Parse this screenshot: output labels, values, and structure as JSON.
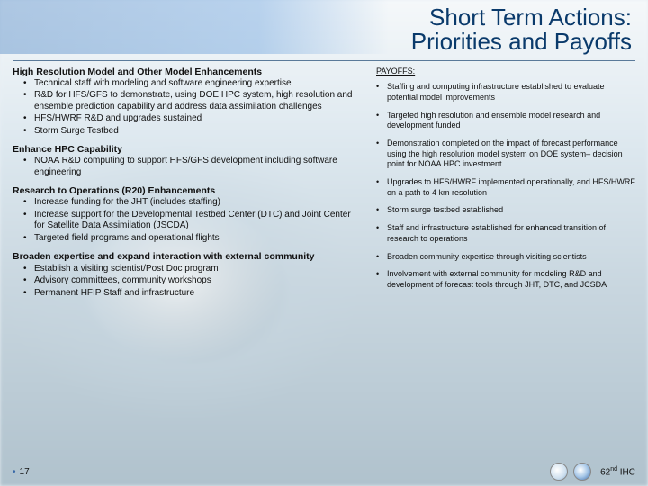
{
  "title_line1": "Short Term Actions:",
  "title_line2": "Priorities and Payoffs",
  "left": {
    "sections": [
      {
        "heading": "High Resolution Model and Other Model Enhancements",
        "underline": true,
        "bullets": [
          "Technical staff with modeling and software engineering expertise",
          "R&D for HFS/GFS to demonstrate, using DOE HPC system, high resolution and ensemble prediction capability and address data assimilation challenges",
          "HFS/HWRF R&D and upgrades sustained",
          "Storm Surge Testbed"
        ]
      },
      {
        "heading": "Enhance HPC Capability",
        "underline": false,
        "bullets": [
          "NOAA R&D computing to support HFS/GFS development  including software engineering"
        ]
      },
      {
        "heading": "Research to Operations (R20) Enhancements",
        "underline": false,
        "bullets": [
          "Increase funding for the JHT (includes staffing)",
          "Increase support for the Developmental Testbed Center (DTC) and Joint Center for Satellite Data Assimilation (JSCDA)",
          "Targeted field programs and operational flights"
        ]
      },
      {
        "heading": "Broaden expertise and expand interaction with external community",
        "underline": false,
        "bullets": [
          "Establish a visiting scientist/Post Doc program",
          "Advisory committees, community workshops",
          "Permanent HFIP Staff and infrastructure"
        ]
      }
    ]
  },
  "right": {
    "heading": "PAYOFFS:",
    "items": [
      "Staffing and computing infrastructure established to evaluate potential model improvements",
      "Targeted high resolution and ensemble model research and development funded",
      "Demonstration completed on the impact of forecast performance using the high resolution model system on DOE system– decision point for NOAA HPC investment",
      "Upgrades to HFS/HWRF implemented operationally, and HFS/HWRF on a path to 4 km resolution",
      "Storm surge testbed established",
      "Staff and infrastructure established for enhanced transition of research to operations",
      "Broaden community expertise through visiting scientists",
      "Involvement with external community for modeling R&D and development of forecast tools through JHT, DTC, and JCSDA"
    ]
  },
  "footer": {
    "page": "17",
    "conf_num": "62",
    "conf_sup": "nd",
    "conf_suffix": " IHC"
  },
  "colors": {
    "title_color": "#0a3a6b",
    "band_start": "#2a6db8",
    "band_end": "#4a8dd6"
  }
}
